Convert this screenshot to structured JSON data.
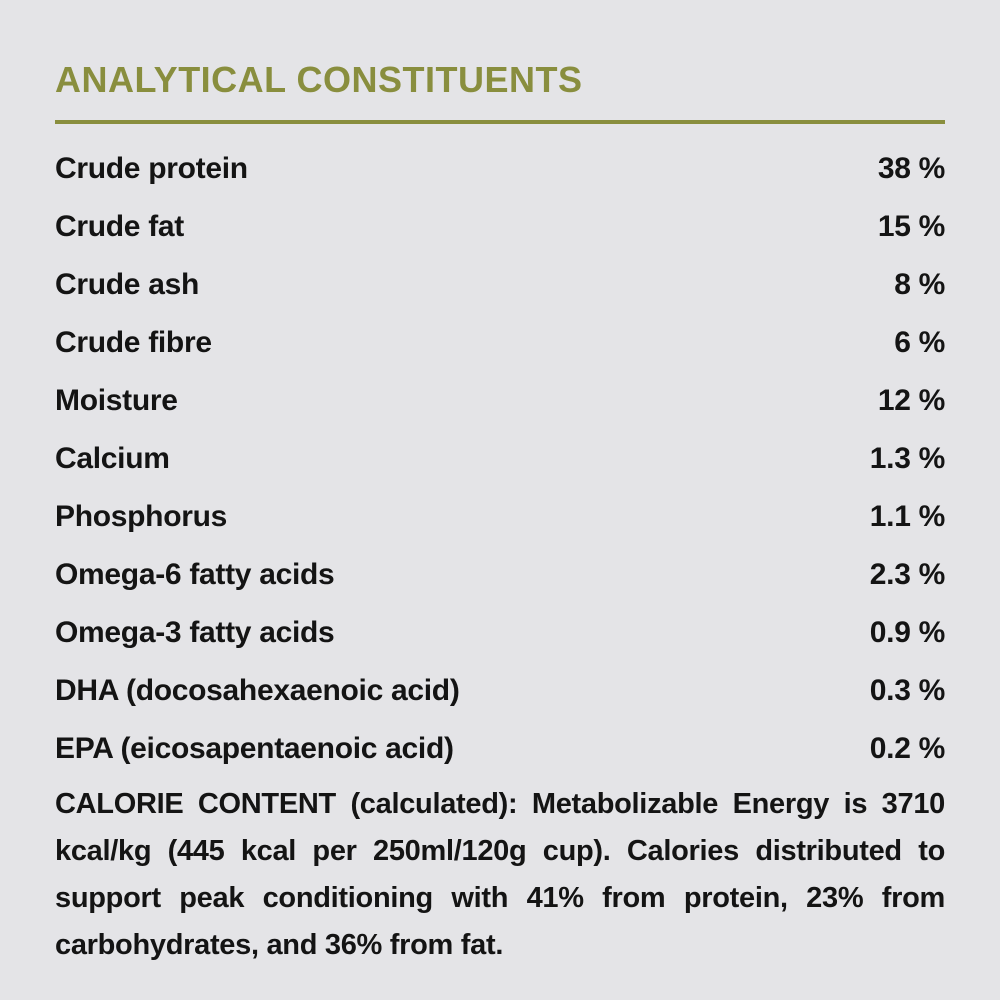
{
  "colors": {
    "background": "#e4e4e7",
    "text": "#141414",
    "accent": "#898e3e"
  },
  "section": {
    "title": "ANALYTICAL CONSTITUENTS"
  },
  "constituents": [
    {
      "label": "Crude protein",
      "value": "38 %"
    },
    {
      "label": "Crude fat",
      "value": "15 %"
    },
    {
      "label": "Crude ash",
      "value": "8 %"
    },
    {
      "label": "Crude fibre",
      "value": "6 %"
    },
    {
      "label": "Moisture",
      "value": "12 %"
    },
    {
      "label": "Calcium",
      "value": "1.3 %"
    },
    {
      "label": "Phosphorus",
      "value": "1.1 %"
    },
    {
      "label": "Omega-6 fatty acids",
      "value": "2.3 %"
    },
    {
      "label": "Omega-3 fatty acids",
      "value": "0.9 %"
    },
    {
      "label": "DHA (docosahexaenoic acid)",
      "value": "0.3 %"
    },
    {
      "label": "EPA (eicosapentaenoic acid)",
      "value": "0.2 %"
    }
  ],
  "calorie_content": {
    "text": "CALORIE CONTENT (calculated): Metabolizable Energy is 3710 kcal/kg (445 kcal per 250ml/120g cup). Calories distributed to support peak conditioning with 41% from protein, 23% from carbohydrates, and 36% from fat."
  }
}
